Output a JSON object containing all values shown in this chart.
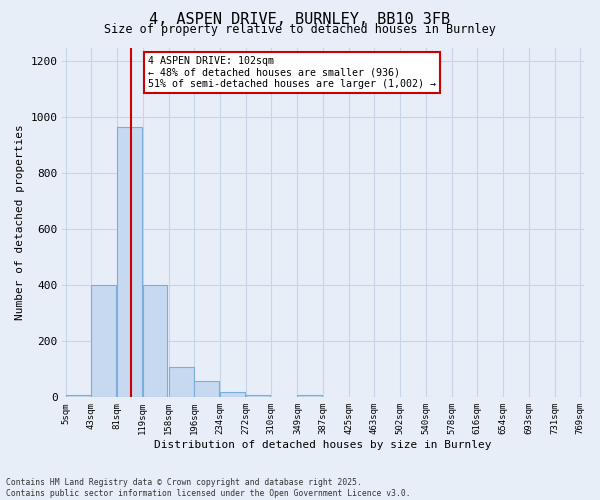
{
  "title_line1": "4, ASPEN DRIVE, BURNLEY, BB10 3FB",
  "title_line2": "Size of property relative to detached houses in Burnley",
  "xlabel": "Distribution of detached houses by size in Burnley",
  "ylabel": "Number of detached properties",
  "bins": [
    5,
    43,
    81,
    119,
    158,
    196,
    234,
    272,
    310,
    349,
    387,
    425,
    463,
    502,
    540,
    578,
    616,
    654,
    693,
    731,
    769
  ],
  "bar_heights": [
    10,
    400,
    965,
    400,
    110,
    60,
    20,
    10,
    0,
    10,
    0,
    0,
    0,
    0,
    0,
    0,
    0,
    0,
    0,
    0
  ],
  "bar_color": "#c6d9f0",
  "bar_edge_color": "#7aafda",
  "vline_x": 102,
  "vline_color": "#cc0000",
  "annotation_text": "4 ASPEN DRIVE: 102sqm\n← 48% of detached houses are smaller (936)\n51% of semi-detached houses are larger (1,002) →",
  "annotation_box_color": "#ffffff",
  "annotation_box_edgecolor": "#cc0000",
  "ylim": [
    0,
    1250
  ],
  "yticks": [
    0,
    200,
    400,
    600,
    800,
    1000,
    1200
  ],
  "grid_color": "#c8d4e8",
  "background_color": "#e8eef8",
  "footer_line1": "Contains HM Land Registry data © Crown copyright and database right 2025.",
  "footer_line2": "Contains public sector information licensed under the Open Government Licence v3.0.",
  "font_family": "DejaVu Sans Mono"
}
